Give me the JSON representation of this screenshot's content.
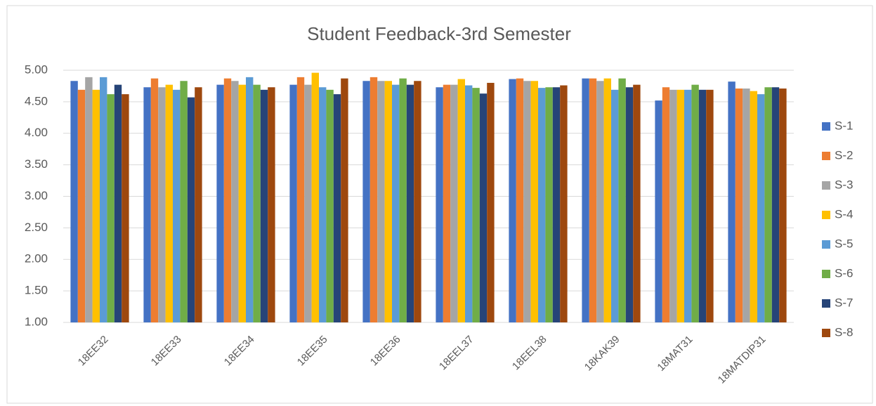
{
  "chart_data": {
    "type": "bar",
    "title": "Student Feedback-3rd Semester",
    "categories": [
      "18EE32",
      "18EE33",
      "18EE34",
      "18EE35",
      "18EE36",
      "18EEL37",
      "18EEL38",
      "18KAK39",
      "18MAT31",
      "18MATDIP31"
    ],
    "series": [
      {
        "name": "S-1",
        "color": "#4472c4",
        "values": [
          4.83,
          4.73,
          4.77,
          4.77,
          4.83,
          4.73,
          4.86,
          4.87,
          4.52,
          4.82
        ]
      },
      {
        "name": "S-2",
        "color": "#ed7d31",
        "values": [
          4.69,
          4.87,
          4.87,
          4.89,
          4.89,
          4.77,
          4.87,
          4.87,
          4.73,
          4.71
        ]
      },
      {
        "name": "S-3",
        "color": "#a5a5a5",
        "values": [
          4.89,
          4.73,
          4.83,
          4.77,
          4.83,
          4.77,
          4.83,
          4.83,
          4.69,
          4.71
        ]
      },
      {
        "name": "S-4",
        "color": "#ffc000",
        "values": [
          4.69,
          4.77,
          4.77,
          4.96,
          4.83,
          4.86,
          4.83,
          4.87,
          4.69,
          4.67
        ]
      },
      {
        "name": "S-5",
        "color": "#5b9bd5",
        "values": [
          4.89,
          4.69,
          4.89,
          4.73,
          4.77,
          4.76,
          4.72,
          4.69,
          4.69,
          4.62
        ]
      },
      {
        "name": "S-6",
        "color": "#70ad47",
        "values": [
          4.62,
          4.83,
          4.77,
          4.69,
          4.87,
          4.72,
          4.73,
          4.87,
          4.77,
          4.73
        ]
      },
      {
        "name": "S-7",
        "color": "#264478",
        "values": [
          4.77,
          4.57,
          4.69,
          4.62,
          4.77,
          4.63,
          4.73,
          4.73,
          4.69,
          4.73
        ]
      },
      {
        "name": "S-8",
        "color": "#9e480e",
        "values": [
          4.62,
          4.73,
          4.73,
          4.87,
          4.83,
          4.8,
          4.76,
          4.77,
          4.69,
          4.71
        ]
      }
    ],
    "ylim": [
      1,
      5
    ],
    "yticks": [
      {
        "value": 1,
        "label": "1.00"
      },
      {
        "value": 1.5,
        "label": "1.50"
      },
      {
        "value": 2,
        "label": "2.00"
      },
      {
        "value": 2.5,
        "label": "2.50"
      },
      {
        "value": 3,
        "label": "3.00"
      },
      {
        "value": 3.5,
        "label": "3.50"
      },
      {
        "value": 4,
        "label": "4.00"
      },
      {
        "value": 4.5,
        "label": "4.50"
      },
      {
        "value": 5,
        "label": "5.00"
      }
    ],
    "grid": true,
    "legend": "right"
  }
}
